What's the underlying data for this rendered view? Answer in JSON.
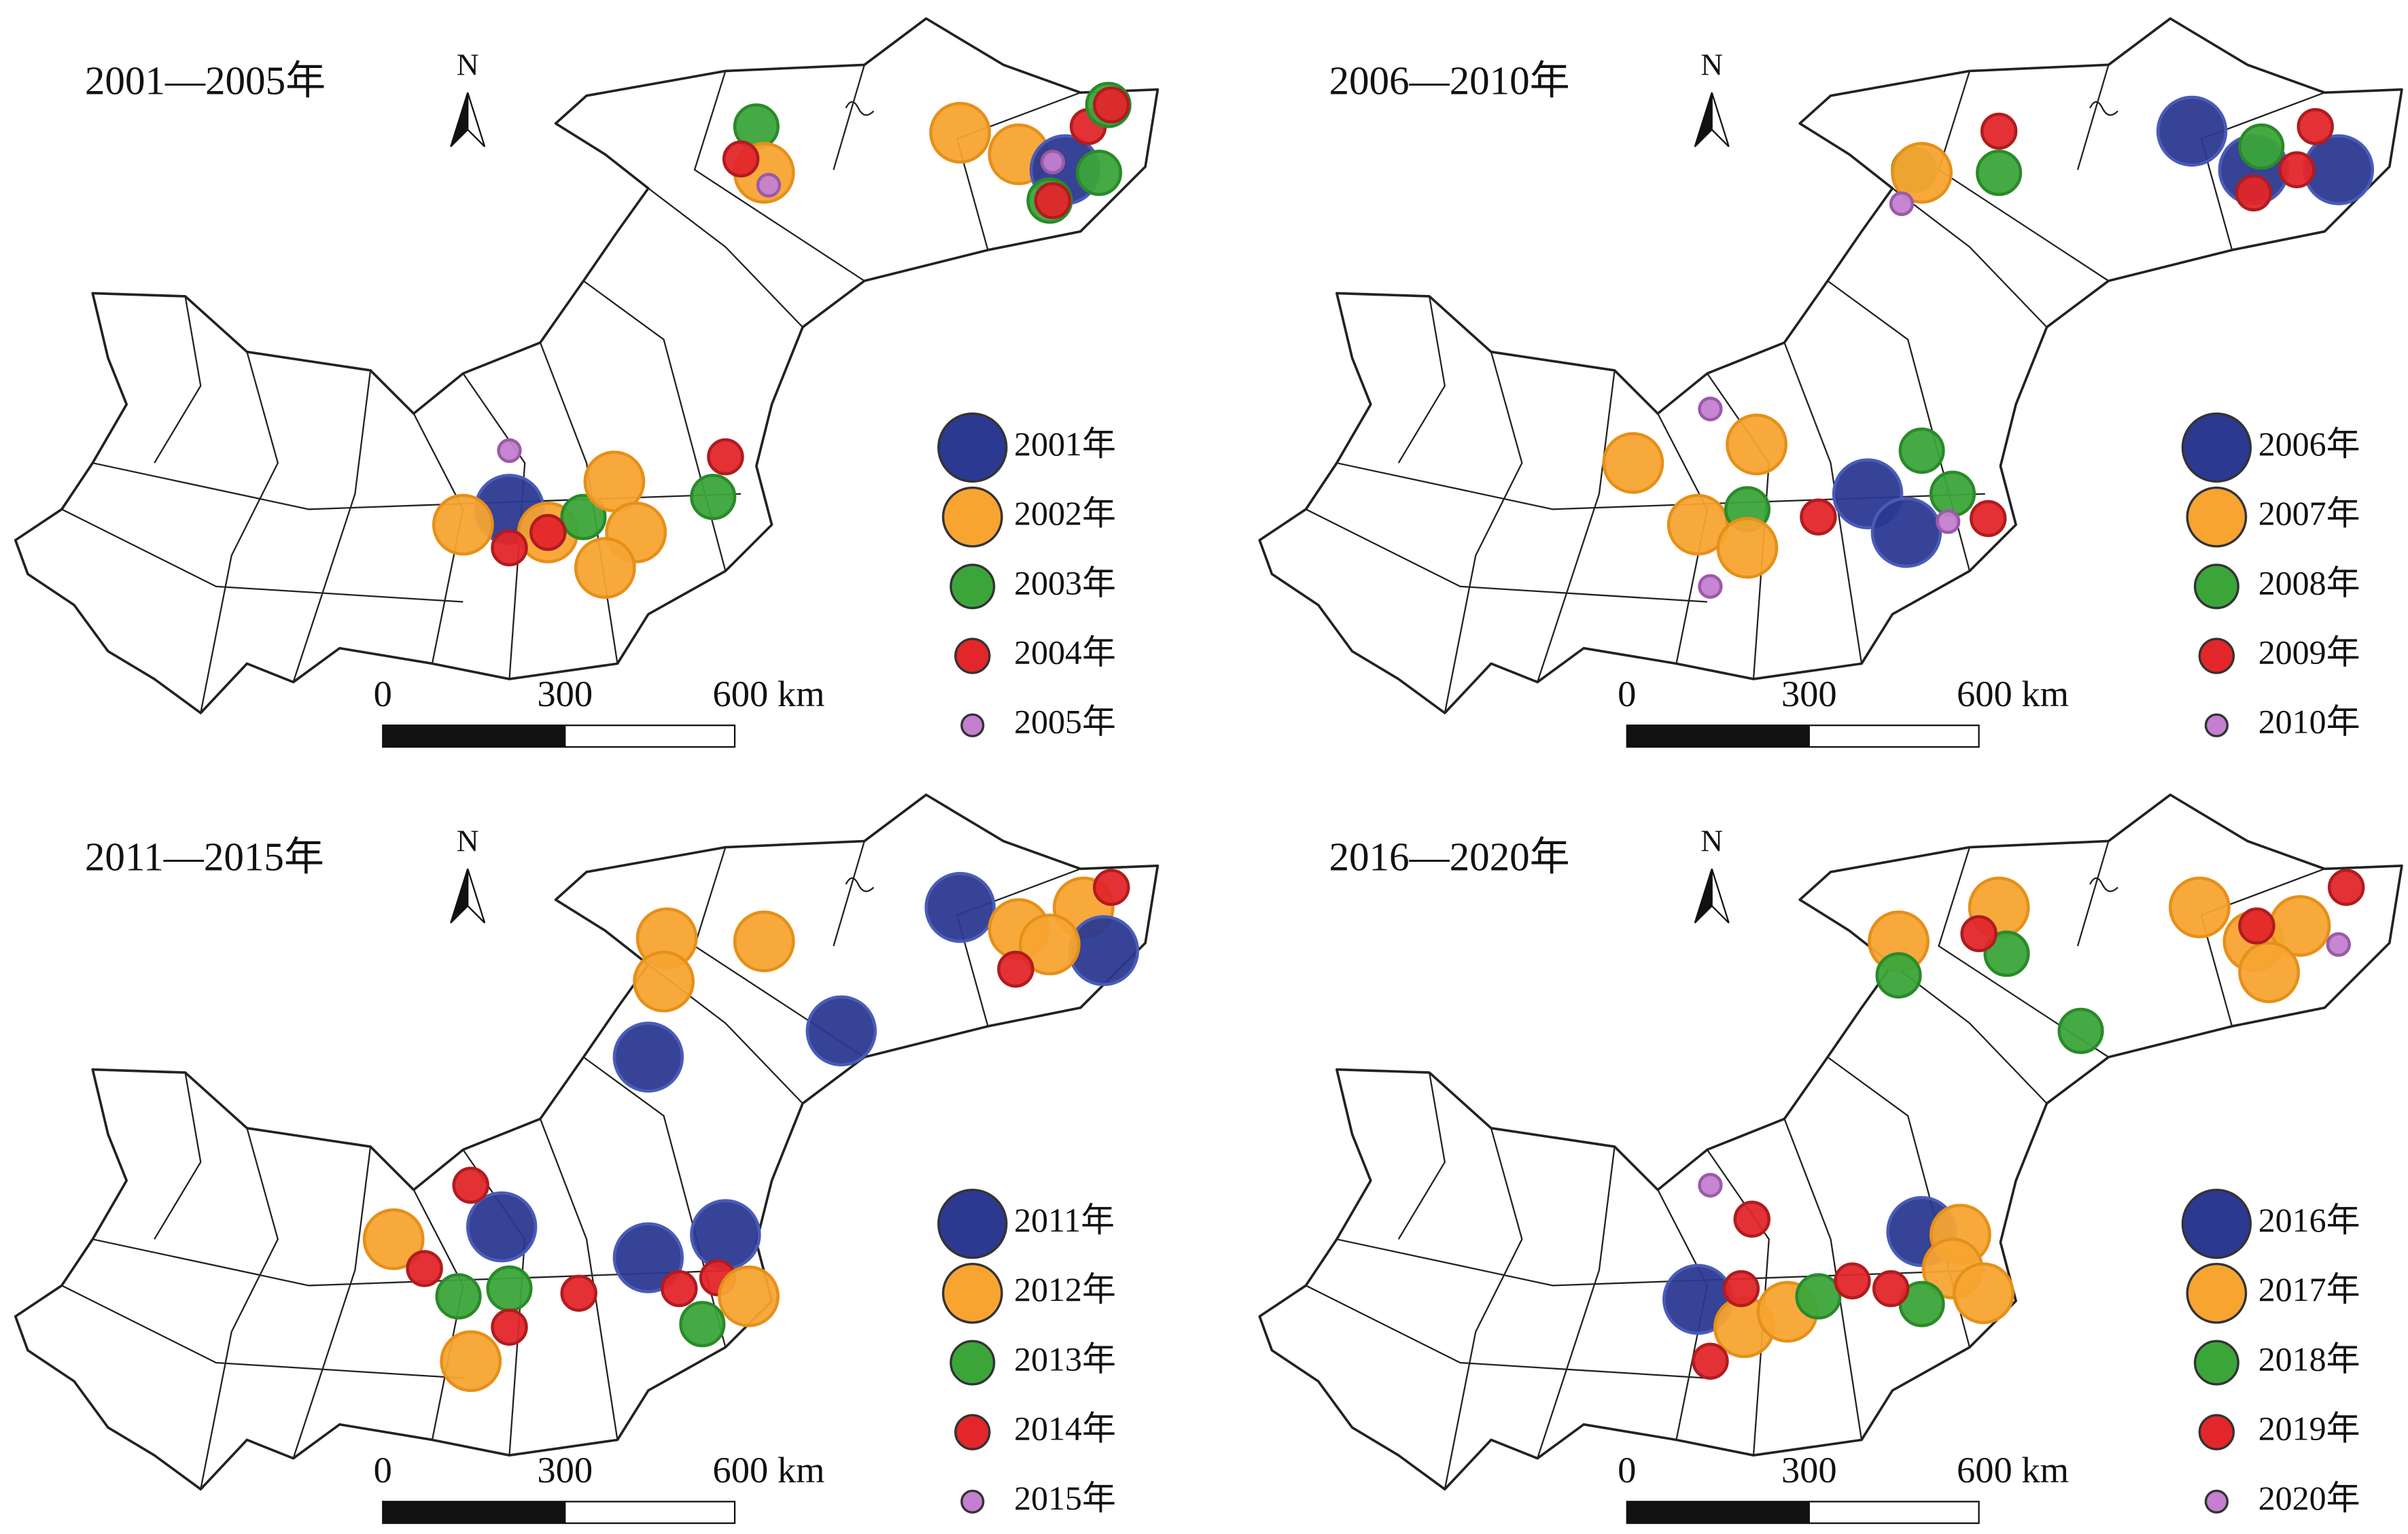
{
  "panels": [
    {
      "title": "2001—2005年",
      "north": "N",
      "legend": [
        "2001年",
        "2002年",
        "2003年",
        "2004年",
        "2005年"
      ],
      "scale": [
        "0",
        "300",
        "600 km"
      ]
    },
    {
      "title": "2006—2010年",
      "north": "N",
      "legend": [
        "2006年",
        "2007年",
        "2008年",
        "2009年",
        "2010年"
      ],
      "scale": [
        "0",
        "300",
        "600 km"
      ]
    },
    {
      "title": "2011—2015年",
      "north": "N",
      "legend": [
        "2011年",
        "2012年",
        "2013年",
        "2014年",
        "2015年"
      ],
      "scale": [
        "0",
        "300",
        "600 km"
      ]
    },
    {
      "title": "2016—2020年",
      "north": "N",
      "legend": [
        "2016年",
        "2017年",
        "2018年",
        "2019年",
        "2020年"
      ],
      "scale": [
        "0",
        "300",
        "600 km"
      ]
    }
  ]
}
